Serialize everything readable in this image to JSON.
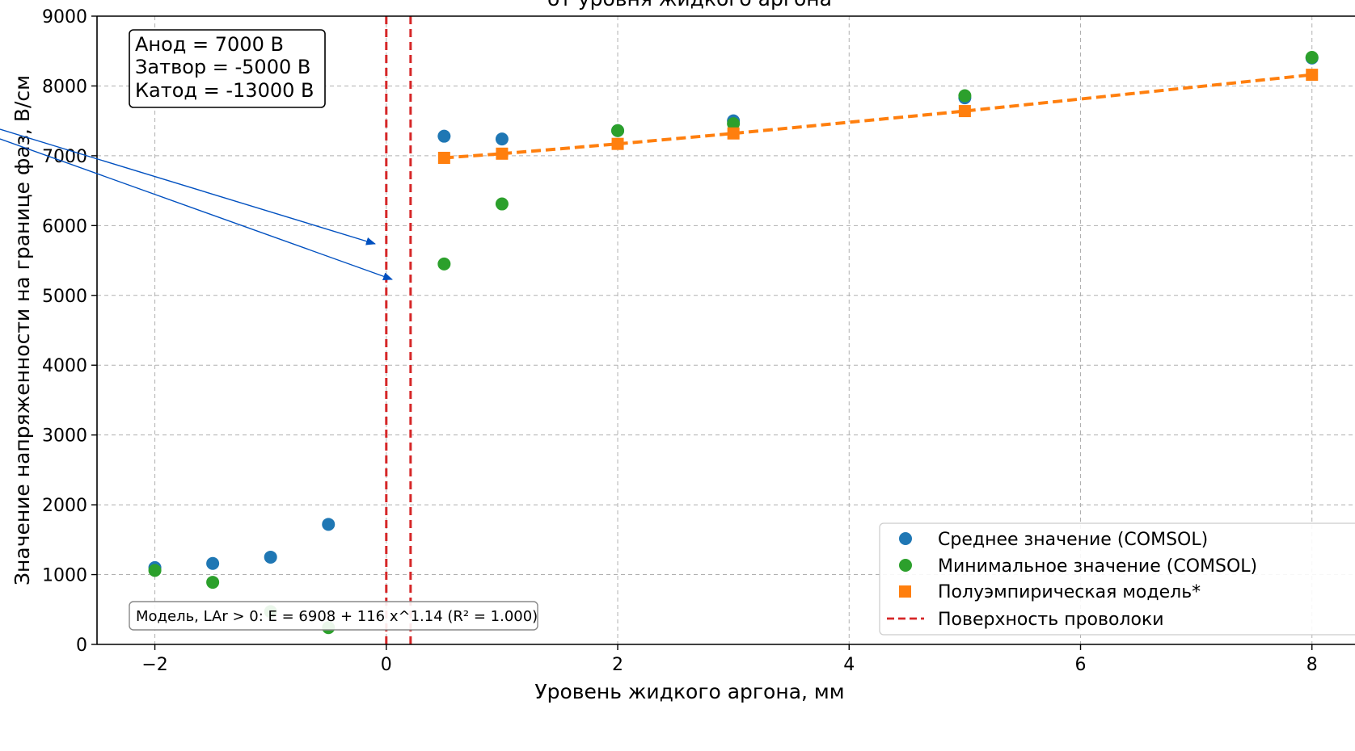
{
  "chart_data": {
    "type": "scatter",
    "title": "от уровня жидкого аргона",
    "xlabel": "Уровень жидкого аргона, мм",
    "ylabel": "Значение напряженности на границе фаз, В/см",
    "xlim": [
      -2.5,
      8.4
    ],
    "ylim": [
      0,
      9000
    ],
    "xticks": [
      -2,
      0,
      2,
      4,
      6,
      8
    ],
    "xtick_labels": [
      "−2",
      "0",
      "2",
      "4",
      "6",
      "8"
    ],
    "yticks": [
      0,
      1000,
      2000,
      3000,
      4000,
      5000,
      6000,
      7000,
      8000,
      9000
    ],
    "ytick_labels": [
      "0",
      "1000",
      "2000",
      "3000",
      "4000",
      "5000",
      "6000",
      "7000",
      "8000",
      "9000"
    ],
    "grid": true,
    "legend_position": "bottom-right",
    "series": [
      {
        "name": "Среднее значение (COMSOL)",
        "marker": "circle",
        "color": "#1f77b4",
        "x": [
          -2,
          -1.5,
          -1,
          -0.5,
          0.5,
          1,
          2,
          3,
          5,
          8
        ],
        "y": [
          1100,
          1160,
          1250,
          1720,
          7280,
          7240,
          7360,
          7500,
          7830,
          8400
        ]
      },
      {
        "name": "Минимальное значение (COMSOL)",
        "marker": "circle",
        "color": "#2ca02c",
        "x": [
          -2,
          -1.5,
          -1,
          -0.5,
          0.5,
          1,
          2,
          3,
          5,
          8
        ],
        "y": [
          1060,
          890,
          470,
          240,
          5450,
          6310,
          7360,
          7460,
          7860,
          8410
        ]
      },
      {
        "name": "Полуэмпирическая модель*",
        "marker": "square",
        "color": "#ff7f0e",
        "line": "dashed",
        "x": [
          0.5,
          1,
          2,
          3,
          5,
          8
        ],
        "y": [
          6970,
          7030,
          7170,
          7320,
          7640,
          8160
        ]
      },
      {
        "name": "Поверхность проволоки",
        "type": "vline",
        "color": "#d62728",
        "line": "dashed",
        "x": [
          0,
          0.21
        ]
      }
    ],
    "annotation_box": [
      "Анод = 7000 В",
      "Затвор = -5000 В",
      "Катод = -13000 В"
    ],
    "model_box": "Модель, LAr > 0: E = 6908 + 116 x^1.14 (R² = 1.000)",
    "arrows_color": "#0050c0"
  }
}
